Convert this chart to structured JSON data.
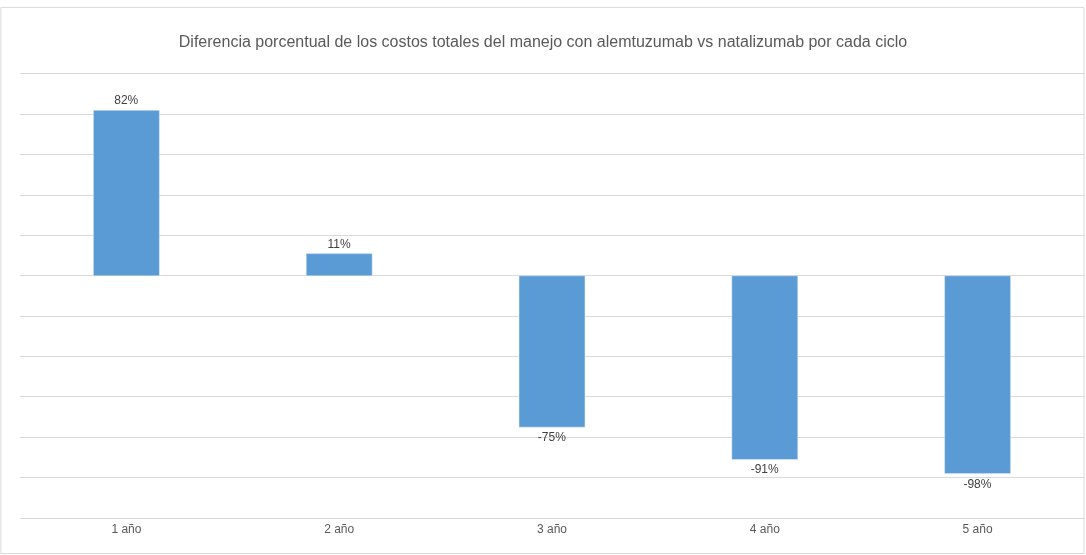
{
  "chart_data": {
    "type": "bar",
    "title": "Diferencia porcentual de los costos totales del manejo con alemtuzumab vs natalizumab por cada ciclo",
    "categories": [
      "1 año",
      "2 año",
      "3 año",
      "4 año",
      "5 año"
    ],
    "values": [
      82,
      11,
      -75,
      -91,
      -98
    ],
    "value_labels": [
      "82%",
      "11%",
      "-75%",
      "-91%",
      "-98%"
    ],
    "color": "#5b9bd5",
    "ylim": [
      -120,
      100
    ],
    "yticks": [
      {
        "value": -120,
        "label": null
      },
      {
        "value": -100,
        "label": null
      },
      {
        "value": -80,
        "label": null
      },
      {
        "value": -60,
        "label": null
      },
      {
        "value": -40,
        "label": null
      },
      {
        "value": -20,
        "label": null
      },
      {
        "value": 0,
        "label": null
      },
      {
        "value": 20,
        "label": null
      },
      {
        "value": 40,
        "label": null
      },
      {
        "value": 60,
        "label": null
      },
      {
        "value": 80,
        "label": null
      },
      {
        "value": 100,
        "label": null
      }
    ],
    "grid": "y",
    "tick_labels": "x"
  }
}
